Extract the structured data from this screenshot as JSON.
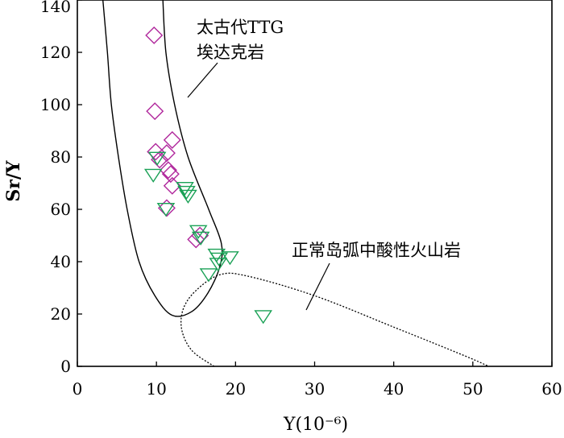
{
  "chart_data": {
    "type": "scatter",
    "title": "",
    "xlabel": "Y(10⁻⁶)",
    "ylabel": "Sr/Y",
    "xlim": [
      0,
      60
    ],
    "ylim": [
      0,
      140
    ],
    "x_ticks": [
      "0",
      "10",
      "20",
      "30",
      "40",
      "50",
      "60"
    ],
    "y_ticks": [
      "0",
      "20",
      "40",
      "60",
      "80",
      "100",
      "120",
      "140"
    ],
    "grid": false,
    "legend": "none",
    "regions": [
      {
        "label_lines": [
          "太古代TTG",
          "埃达克岩"
        ],
        "style": "solid",
        "outline": [
          [
            3.2,
            141
          ],
          [
            3.8,
            120
          ],
          [
            4.3,
            100
          ],
          [
            5.2,
            80
          ],
          [
            6.3,
            60
          ],
          [
            7.8,
            40
          ],
          [
            9.8,
            27
          ],
          [
            12,
            19.5
          ],
          [
            14.5,
            21
          ],
          [
            16.5,
            28
          ],
          [
            18,
            38
          ],
          [
            18.2,
            47
          ],
          [
            16.6,
            60
          ],
          [
            14,
            80
          ],
          [
            12.3,
            100
          ],
          [
            11.2,
            120
          ],
          [
            10.8,
            141
          ]
        ]
      },
      {
        "label_lines": [
          "正常岛弧中酸性火山岩"
        ],
        "style": "dotted",
        "outline": [
          [
            17.3,
            0
          ],
          [
            14.5,
            6
          ],
          [
            13.2,
            14
          ],
          [
            13.4,
            22
          ],
          [
            15,
            29
          ],
          [
            18,
            35
          ],
          [
            21.5,
            34.5
          ],
          [
            30,
            27
          ],
          [
            40,
            15
          ],
          [
            49,
            4
          ],
          [
            52,
            0
          ]
        ]
      }
    ],
    "series": [
      {
        "marker": "diamond",
        "color": "#b0279c",
        "points": [
          [
            9.7,
            126.5
          ],
          [
            9.8,
            97.5
          ],
          [
            9.9,
            82
          ],
          [
            10.4,
            79
          ],
          [
            11.3,
            81.5
          ],
          [
            12,
            86.5
          ],
          [
            11.5,
            75
          ],
          [
            11.8,
            73.5
          ],
          [
            12,
            69
          ],
          [
            11.3,
            60.5
          ],
          [
            15,
            48.5
          ],
          [
            15.5,
            50
          ]
        ]
      },
      {
        "marker": "triangle-down",
        "color": "#1aa156",
        "points": [
          [
            9.6,
            73.5
          ],
          [
            10.1,
            80
          ],
          [
            13.6,
            68.5
          ],
          [
            13.8,
            67
          ],
          [
            14,
            65.5
          ],
          [
            11.2,
            60.5
          ],
          [
            15.3,
            52
          ],
          [
            15.6,
            49.5
          ],
          [
            17.6,
            43
          ],
          [
            17.9,
            41.5
          ],
          [
            19.3,
            42
          ],
          [
            17.8,
            39.5
          ],
          [
            16.6,
            35.5
          ],
          [
            23.5,
            19.5
          ]
        ]
      }
    ]
  }
}
